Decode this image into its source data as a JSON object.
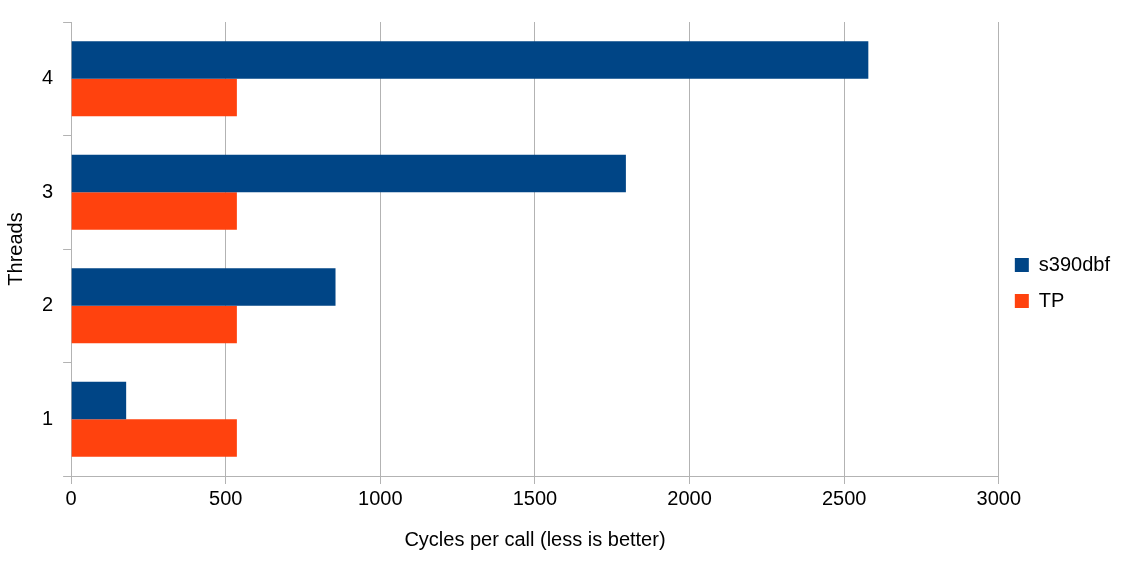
{
  "chart_data": {
    "type": "bar",
    "orientation": "horizontal",
    "xlabel": "Cycles per call (less is better)",
    "ylabel": "Threads",
    "categories": [
      "4",
      "3",
      "2",
      "1"
    ],
    "series": [
      {
        "name": "s390dbf",
        "color": "#004586",
        "values": [
          2578,
          1794,
          855,
          178
        ]
      },
      {
        "name": "TP",
        "color": "#ff420e",
        "values": [
          536,
          536,
          536,
          536
        ]
      }
    ],
    "xlim": [
      0,
      3000
    ],
    "xticks": [
      0,
      500,
      1000,
      1500,
      2000,
      2500,
      3000
    ],
    "grid": "x",
    "legend": "right"
  }
}
